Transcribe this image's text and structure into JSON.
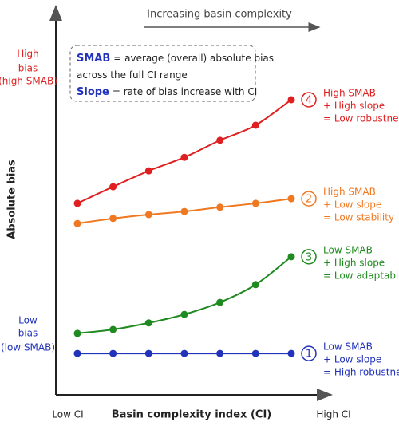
{
  "chart_data": {
    "type": "line",
    "title": "Increasing basin complexity",
    "xlabel": "Basin complexity index (CI)",
    "ylabel": "Absolute bias",
    "x_end_labels": [
      "Low CI",
      "High CI"
    ],
    "y_end_labels": [
      {
        "lines": [
          "Low",
          "bias",
          "(low SMAB)"
        ],
        "color": "#2233bb"
      },
      {
        "lines": [
          "High",
          "bias",
          "(high SMAB)"
        ],
        "color": "#e02020"
      }
    ],
    "definitions": [
      {
        "term": "SMAB",
        "lines": [
          "= average (overall) absolute bias",
          "across the full CI range"
        ]
      },
      {
        "term": "Slope",
        "lines": [
          "= rate of bias increase with CI"
        ]
      }
    ],
    "categories": [
      null,
      null,
      null,
      null,
      null,
      null,
      null
    ],
    "ylim": [
      0,
      100
    ],
    "series": [
      {
        "name": "4",
        "color": "#e02020",
        "values": [
          49.5,
          53.8,
          57.9,
          61.4,
          65.8,
          69.7,
          76.3
        ],
        "annotation": [
          "High SMAB",
          "+ High slope",
          "= Low robustness"
        ]
      },
      {
        "name": "2",
        "color": "#f07820",
        "values": [
          44.3,
          45.6,
          46.6,
          47.4,
          48.5,
          49.5,
          50.7
        ],
        "annotation": [
          "High SMAB",
          "+ Low slope",
          "= Low stability"
        ]
      },
      {
        "name": "3",
        "color": "#1f8a1f",
        "values": [
          15.9,
          16.9,
          18.6,
          20.8,
          23.9,
          28.5,
          35.7
        ],
        "annotation": [
          "Low SMAB",
          "+ High slope",
          "= Low adaptability"
        ]
      },
      {
        "name": "1",
        "color": "#2233bb",
        "values": [
          10.7,
          10.7,
          10.7,
          10.7,
          10.7,
          10.7,
          10.7
        ],
        "annotation": [
          "Low SMAB",
          "+ Low slope",
          "= High robustness"
        ]
      }
    ]
  }
}
